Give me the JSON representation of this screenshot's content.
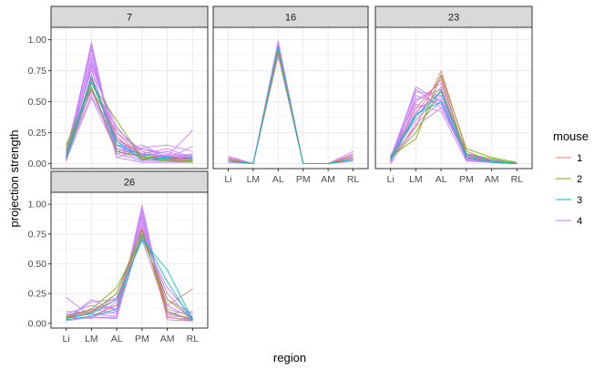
{
  "chart_data": {
    "type": "line",
    "xlabel": "region",
    "ylabel": "projection strength",
    "categories": [
      "Li",
      "LM",
      "AL",
      "PM",
      "AM",
      "RL"
    ],
    "yticks": [
      "0.00",
      "0.25",
      "0.50",
      "0.75",
      "1.00"
    ],
    "ylim": [
      -0.04,
      1.1
    ],
    "grid": true,
    "legend": {
      "title": "mouse",
      "position": "right",
      "entries": [
        {
          "label": "1",
          "color": "#F8766D"
        },
        {
          "label": "2",
          "color": "#7CAE00"
        },
        {
          "label": "3",
          "color": "#00BFC4"
        },
        {
          "label": "4",
          "color": "#C77CFF"
        }
      ]
    },
    "panels": [
      {
        "label": "7",
        "series": [
          {
            "mouse": "4",
            "values": [
              0.05,
              0.98,
              0.05,
              0.01,
              0.01,
              0.01
            ]
          },
          {
            "mouse": "4",
            "values": [
              0.03,
              0.95,
              0.08,
              0.02,
              0.02,
              0.02
            ]
          },
          {
            "mouse": "4",
            "values": [
              0.1,
              0.92,
              0.1,
              0.05,
              0.04,
              0.03
            ]
          },
          {
            "mouse": "4",
            "values": [
              0.05,
              0.88,
              0.12,
              0.06,
              0.03,
              0.04
            ]
          },
          {
            "mouse": "4",
            "values": [
              0.08,
              0.85,
              0.15,
              0.04,
              0.05,
              0.02
            ]
          },
          {
            "mouse": "4",
            "values": [
              0.02,
              0.82,
              0.2,
              0.08,
              0.06,
              0.05
            ]
          },
          {
            "mouse": "4",
            "values": [
              0.06,
              0.8,
              0.25,
              0.1,
              0.04,
              0.03
            ]
          },
          {
            "mouse": "4",
            "values": [
              0.04,
              0.78,
              0.05,
              0.12,
              0.08,
              0.06
            ]
          },
          {
            "mouse": "4",
            "values": [
              0.12,
              0.75,
              0.3,
              0.05,
              0.03,
              0.05
            ]
          },
          {
            "mouse": "4",
            "values": [
              0.03,
              0.72,
              0.1,
              0.15,
              0.05,
              0.08
            ]
          },
          {
            "mouse": "4",
            "values": [
              0.07,
              0.7,
              0.18,
              0.06,
              0.1,
              0.04
            ]
          },
          {
            "mouse": "4",
            "values": [
              0.05,
              0.68,
              0.22,
              0.04,
              0.02,
              0.03
            ]
          },
          {
            "mouse": "4",
            "values": [
              0.1,
              0.65,
              0.28,
              0.1,
              0.05,
              0.07
            ]
          },
          {
            "mouse": "4",
            "values": [
              0.02,
              0.62,
              0.12,
              0.08,
              0.12,
              0.05
            ]
          },
          {
            "mouse": "4",
            "values": [
              0.08,
              0.6,
              0.08,
              0.13,
              0.15,
              0.1
            ]
          },
          {
            "mouse": "4",
            "values": [
              0.15,
              0.58,
              0.2,
              0.05,
              0.04,
              0.14
            ]
          },
          {
            "mouse": "4",
            "values": [
              0.06,
              0.55,
              0.15,
              0.12,
              0.06,
              0.27
            ]
          },
          {
            "mouse": "4",
            "values": [
              0.03,
              0.53,
              0.1,
              0.03,
              0.07,
              0.04
            ]
          },
          {
            "mouse": "1",
            "values": [
              0.08,
              0.68,
              0.2,
              0.08,
              0.03,
              0.05
            ]
          },
          {
            "mouse": "1",
            "values": [
              0.05,
              0.6,
              0.25,
              0.05,
              0.06,
              0.03
            ]
          },
          {
            "mouse": "2",
            "values": [
              0.1,
              0.65,
              0.35,
              0.04,
              0.02,
              0.01
            ]
          },
          {
            "mouse": "2",
            "values": [
              0.15,
              0.62,
              0.1,
              0.06,
              0.03,
              0.02
            ]
          },
          {
            "mouse": "3",
            "values": [
              0.06,
              0.7,
              0.15,
              0.07,
              0.05,
              0.04
            ]
          },
          {
            "mouse": "3",
            "values": [
              0.04,
              0.66,
              0.18,
              0.03,
              0.04,
              0.05
            ]
          }
        ]
      },
      {
        "label": "16",
        "series": [
          {
            "mouse": "4",
            "values": [
              0.06,
              0.0,
              0.99,
              0.0,
              0.0,
              0.1
            ]
          },
          {
            "mouse": "4",
            "values": [
              0.04,
              0.0,
              0.97,
              0.0,
              0.0,
              0.08
            ]
          },
          {
            "mouse": "4",
            "values": [
              0.03,
              0.0,
              0.95,
              0.0,
              0.0,
              0.06
            ]
          },
          {
            "mouse": "4",
            "values": [
              0.02,
              0.0,
              0.93,
              0.0,
              0.0,
              0.05
            ]
          },
          {
            "mouse": "4",
            "values": [
              0.05,
              0.0,
              0.91,
              0.0,
              0.0,
              0.03
            ]
          },
          {
            "mouse": "4",
            "values": [
              0.01,
              0.0,
              0.89,
              0.0,
              0.0,
              0.02
            ]
          },
          {
            "mouse": "4",
            "values": [
              0.03,
              0.0,
              0.87,
              0.0,
              0.0,
              0.04
            ]
          },
          {
            "mouse": "1",
            "values": [
              0.04,
              0.0,
              0.92,
              0.0,
              0.0,
              0.07
            ]
          },
          {
            "mouse": "2",
            "values": [
              0.03,
              0.0,
              0.9,
              0.0,
              0.0,
              0.05
            ]
          },
          {
            "mouse": "3",
            "values": [
              0.02,
              0.0,
              0.94,
              0.0,
              0.0,
              0.03
            ]
          }
        ]
      },
      {
        "label": "23",
        "series": [
          {
            "mouse": "4",
            "values": [
              0.02,
              0.62,
              0.5,
              0.05,
              0.01,
              0.0
            ]
          },
          {
            "mouse": "4",
            "values": [
              0.05,
              0.6,
              0.45,
              0.08,
              0.02,
              0.0
            ]
          },
          {
            "mouse": "4",
            "values": [
              0.03,
              0.58,
              0.55,
              0.03,
              0.01,
              0.0
            ]
          },
          {
            "mouse": "4",
            "values": [
              0.0,
              0.55,
              0.48,
              0.06,
              0.02,
              0.01
            ]
          },
          {
            "mouse": "4",
            "values": [
              0.04,
              0.52,
              0.6,
              0.04,
              0.01,
              0.0
            ]
          },
          {
            "mouse": "4",
            "values": [
              0.06,
              0.5,
              0.65,
              0.07,
              0.03,
              0.0
            ]
          },
          {
            "mouse": "4",
            "values": [
              0.02,
              0.48,
              0.42,
              0.02,
              0.01,
              0.0
            ]
          },
          {
            "mouse": "4",
            "values": [
              0.05,
              0.45,
              0.52,
              0.05,
              0.02,
              0.0
            ]
          },
          {
            "mouse": "4",
            "values": [
              0.03,
              0.42,
              0.58,
              0.1,
              0.02,
              0.0
            ]
          },
          {
            "mouse": "4",
            "values": [
              0.01,
              0.4,
              0.7,
              0.06,
              0.01,
              0.0
            ]
          },
          {
            "mouse": "4",
            "values": [
              0.04,
              0.38,
              0.62,
              0.04,
              0.02,
              0.0
            ]
          },
          {
            "mouse": "4",
            "values": [
              0.06,
              0.35,
              0.55,
              0.08,
              0.03,
              0.0
            ]
          },
          {
            "mouse": "4",
            "values": [
              0.02,
              0.32,
              0.5,
              0.03,
              0.01,
              0.0
            ]
          },
          {
            "mouse": "4",
            "values": [
              0.0,
              0.3,
              0.45,
              0.05,
              0.02,
              0.0
            ]
          },
          {
            "mouse": "1",
            "values": [
              0.05,
              0.3,
              0.75,
              0.1,
              0.02,
              0.0
            ]
          },
          {
            "mouse": "1",
            "values": [
              0.03,
              0.45,
              0.68,
              0.06,
              0.01,
              0.0
            ]
          },
          {
            "mouse": "2",
            "values": [
              0.06,
              0.2,
              0.72,
              0.12,
              0.05,
              0.01
            ]
          },
          {
            "mouse": "2",
            "values": [
              0.04,
              0.25,
              0.6,
              0.08,
              0.04,
              0.0
            ]
          },
          {
            "mouse": "3",
            "values": [
              0.05,
              0.4,
              0.5,
              0.07,
              0.02,
              0.0
            ]
          },
          {
            "mouse": "3",
            "values": [
              0.03,
              0.38,
              0.58,
              0.05,
              0.01,
              0.0
            ]
          }
        ]
      },
      {
        "label": "26",
        "series": [
          {
            "mouse": "4",
            "values": [
              0.02,
              0.05,
              0.04,
              0.99,
              0.03,
              0.02
            ]
          },
          {
            "mouse": "4",
            "values": [
              0.04,
              0.08,
              0.06,
              0.96,
              0.05,
              0.03
            ]
          },
          {
            "mouse": "4",
            "values": [
              0.03,
              0.06,
              0.1,
              0.93,
              0.08,
              0.04
            ]
          },
          {
            "mouse": "4",
            "values": [
              0.05,
              0.12,
              0.08,
              0.9,
              0.06,
              0.05
            ]
          },
          {
            "mouse": "4",
            "values": [
              0.06,
              0.1,
              0.15,
              0.88,
              0.1,
              0.02
            ]
          },
          {
            "mouse": "4",
            "values": [
              0.08,
              0.15,
              0.12,
              0.85,
              0.12,
              0.06
            ]
          },
          {
            "mouse": "4",
            "values": [
              0.04,
              0.18,
              0.2,
              0.82,
              0.15,
              0.04
            ]
          },
          {
            "mouse": "4",
            "values": [
              0.1,
              0.09,
              0.25,
              0.8,
              0.2,
              0.08
            ]
          },
          {
            "mouse": "4",
            "values": [
              0.22,
              0.05,
              0.05,
              0.78,
              0.08,
              0.1
            ]
          },
          {
            "mouse": "4",
            "values": [
              0.03,
              0.2,
              0.1,
              0.75,
              0.25,
              0.03
            ]
          },
          {
            "mouse": "4",
            "values": [
              0.05,
              0.04,
              0.18,
              0.72,
              0.3,
              0.05
            ]
          },
          {
            "mouse": "4",
            "values": [
              0.07,
              0.11,
              0.22,
              0.7,
              0.1,
              0.02
            ]
          },
          {
            "mouse": "1",
            "values": [
              0.05,
              0.1,
              0.2,
              0.75,
              0.15,
              0.29
            ]
          },
          {
            "mouse": "1",
            "values": [
              0.03,
              0.06,
              0.15,
              0.8,
              0.05,
              0.02
            ]
          },
          {
            "mouse": "2",
            "values": [
              0.06,
              0.12,
              0.3,
              0.72,
              0.2,
              0.04
            ]
          },
          {
            "mouse": "2",
            "values": [
              0.04,
              0.09,
              0.25,
              0.78,
              0.1,
              0.03
            ]
          },
          {
            "mouse": "3",
            "values": [
              0.05,
              0.08,
              0.2,
              0.7,
              0.45,
              0.03
            ]
          },
          {
            "mouse": "3",
            "values": [
              0.03,
              0.06,
              0.12,
              0.74,
              0.35,
              0.02
            ]
          }
        ]
      }
    ]
  }
}
